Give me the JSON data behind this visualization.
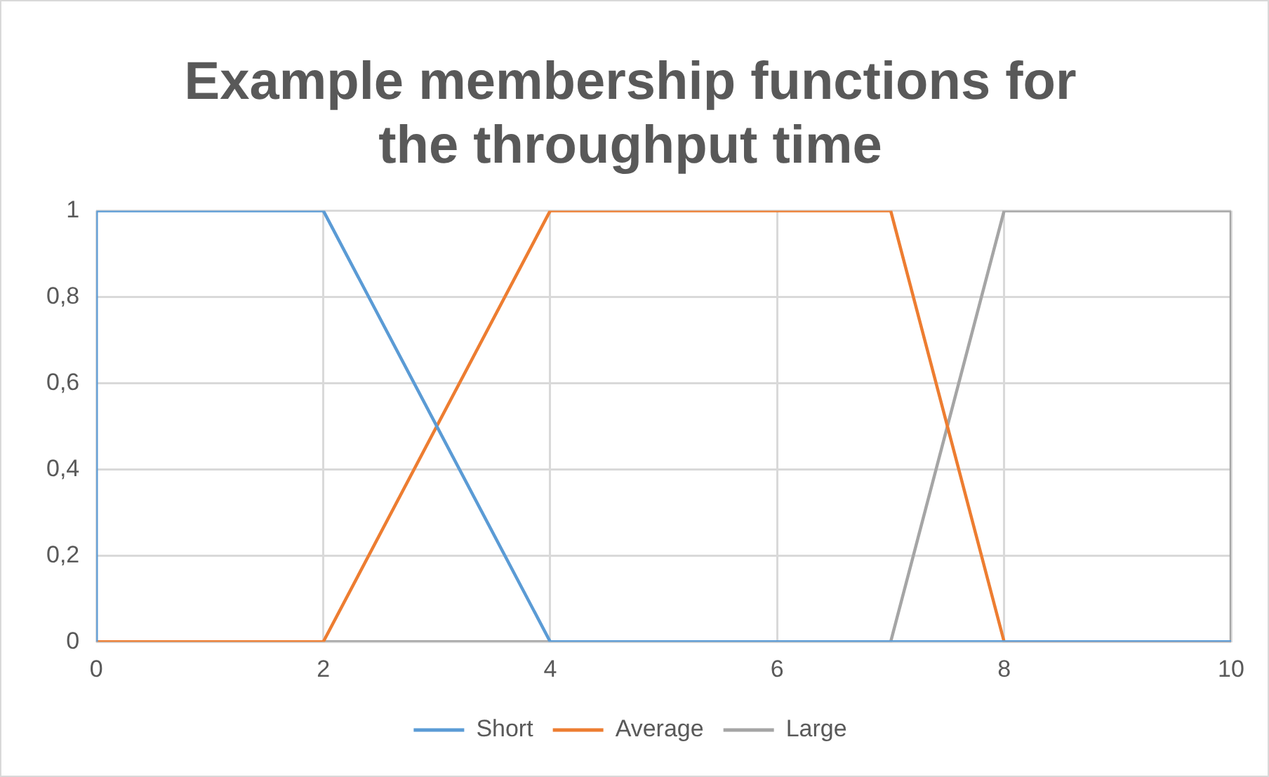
{
  "chart_data": {
    "type": "line",
    "title": "Example membership functions for the throughput time",
    "xlim": [
      0,
      10
    ],
    "xticks": [
      0,
      2,
      4,
      6,
      8,
      10
    ],
    "ylim": [
      0,
      1
    ],
    "yticks": [
      0,
      {
        "value": 0.2,
        "label": "0,2"
      },
      {
        "value": 0.4,
        "label": "0,4"
      },
      {
        "value": 0.6,
        "label": "0,6"
      },
      {
        "value": 0.8,
        "label": "0,8"
      },
      1
    ],
    "grid": true,
    "legend": "bottom",
    "marker": "none",
    "line_style": "solid",
    "series": [
      {
        "name": "Short",
        "color": "#5b9bd5",
        "x": [
          0,
          0,
          2,
          4,
          10
        ],
        "values": [
          0,
          1,
          1,
          0,
          0
        ]
      },
      {
        "name": "Average",
        "color": "#ed7d31",
        "x": [
          0,
          2,
          4,
          7,
          8,
          10
        ],
        "values": [
          0,
          0,
          1,
          1,
          0,
          0
        ]
      },
      {
        "name": "Large",
        "color": "#a5a5a5",
        "x": [
          0,
          7,
          8,
          10,
          10
        ],
        "values": [
          0,
          0,
          1,
          1,
          0
        ]
      }
    ]
  }
}
